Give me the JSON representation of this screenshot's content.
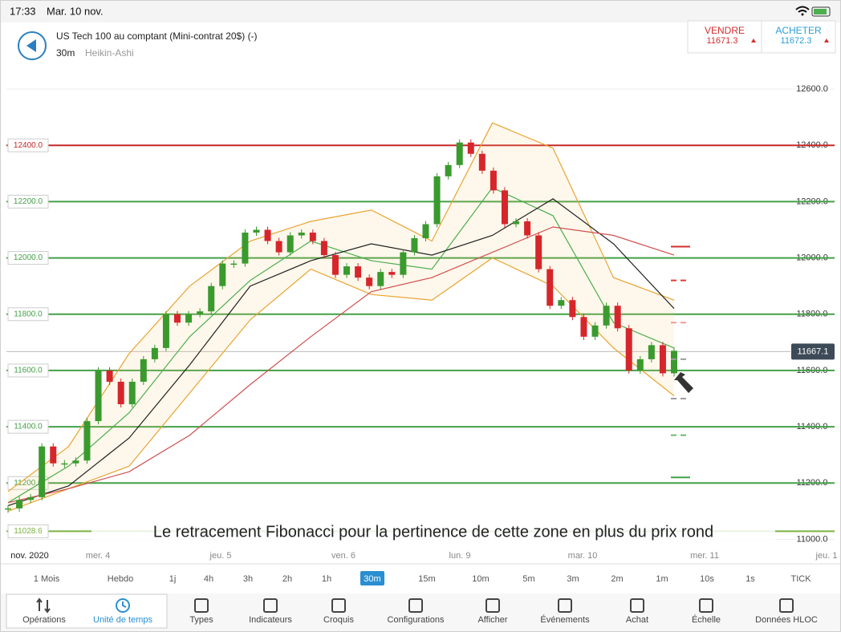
{
  "status_bar": {
    "time": "17:33",
    "date": "Mar. 10 nov."
  },
  "header": {
    "instrument": "US Tech 100 au comptant (Mini-contrat 20$) (-)",
    "interval": "30m",
    "chart_style": "Heikin-Ashi"
  },
  "quote": {
    "sell_label": "VENDRE",
    "sell_price": "11671.3",
    "buy_label": "ACHETER",
    "buy_price": "11672.3"
  },
  "chart_data": {
    "type": "candlestick",
    "up_color": "#3a9a2e",
    "down_color": "#d6262b",
    "values": [
      11110,
      11140,
      11150,
      11330,
      11270,
      11270,
      11280,
      11420,
      11600,
      11560,
      11480,
      11560,
      11640,
      11680,
      11800,
      11770,
      11800,
      11810,
      11900,
      11980,
      11980,
      12090,
      12100,
      12060,
      12020,
      12080,
      12090,
      12060,
      12010,
      11940,
      11970,
      11930,
      11900,
      11950,
      11940,
      12020,
      12070,
      12120,
      12290,
      12330,
      12410,
      12370,
      12310,
      12240,
      12120,
      12130,
      12080,
      11960,
      11830,
      11850,
      11790,
      11720,
      11760,
      11830,
      11750,
      11600,
      11640,
      11690,
      11590,
      11670
    ],
    "series": [
      {
        "color": "#e8a532",
        "values": [
          11170,
          11330,
          11660,
          11900,
          12060,
          12130,
          12170,
          12060,
          12480,
          12390,
          11930,
          11850
        ]
      },
      {
        "color": "#e8a532",
        "values": [
          11100,
          11180,
          11260,
          11520,
          11780,
          11960,
          11870,
          11850,
          12000,
          11900,
          11680,
          11510
        ]
      },
      {
        "color": "#4caf50",
        "values": [
          11130,
          11260,
          11450,
          11720,
          11920,
          12060,
          11990,
          11960,
          12250,
          12150,
          11770,
          11680
        ]
      },
      {
        "color": "#222222",
        "values": [
          11120,
          11190,
          11360,
          11620,
          11900,
          11990,
          12050,
          12010,
          12080,
          12210,
          12050,
          11820
        ]
      },
      {
        "color": "#d05050",
        "values": [
          11130,
          11180,
          11240,
          11370,
          11550,
          11720,
          11880,
          11930,
          12020,
          12110,
          12080,
          12010
        ]
      }
    ],
    "ylim": [
      10950,
      12660
    ],
    "yticks": [
      {
        "value": 11000,
        "label": "11000.0"
      },
      {
        "value": 11200,
        "label": "11200.0"
      },
      {
        "value": 11400,
        "label": "11400.0"
      },
      {
        "value": 11600,
        "label": "11600.0"
      },
      {
        "value": 11800,
        "label": "11800.0"
      },
      {
        "value": 12000,
        "label": "12000.0"
      },
      {
        "value": 12200,
        "label": "12200.0"
      },
      {
        "value": 12400,
        "label": "12400.0"
      },
      {
        "value": 12600,
        "label": "12600.0"
      }
    ],
    "levels": [
      {
        "value": 12400,
        "label": "12400.0",
        "color": "#c62828"
      },
      {
        "value": 12200,
        "label": "12200.0",
        "color": "#43a047"
      },
      {
        "value": 12000,
        "label": "12000.0",
        "color": "#43a047"
      },
      {
        "value": 11800,
        "label": "11800.0",
        "color": "#43a047"
      },
      {
        "value": 11600,
        "label": "11600.0",
        "color": "#43a047"
      },
      {
        "value": 11400,
        "label": "11400.0",
        "color": "#43a047"
      },
      {
        "value": 11200,
        "label": "11200.0",
        "color": "#43a047"
      },
      {
        "value": 11028.6,
        "label": "11028.6",
        "color": "#7cb342"
      }
    ],
    "pivots": [
      {
        "value": 12040,
        "color": "#d32f2f"
      },
      {
        "value": 11920,
        "color": "#e53935"
      },
      {
        "value": 11770,
        "color": "#ef9a9a"
      },
      {
        "value": 11640,
        "color": "#9e9e9e"
      },
      {
        "value": 11500,
        "color": "#9e9e9e"
      },
      {
        "value": 11370,
        "color": "#66bb6a"
      },
      {
        "value": 11220,
        "color": "#43a047"
      }
    ],
    "current_price": {
      "value": 11667.1,
      "label": "11667.1"
    },
    "x_labels": [
      "nov. 2020",
      "mer. 4",
      "jeu. 5",
      "ven. 6",
      "lun. 9",
      "mar. 10",
      "mer. 11",
      "jeu. 1"
    ],
    "annotation": "Le retracement Fibonacci pour la pertinence de cette zone en plus du prix rond"
  },
  "timeframes": {
    "items": [
      "1 Mois",
      "Hebdo",
      "1j",
      "4h",
      "3h",
      "2h",
      "1h",
      "30m",
      "15m",
      "10m",
      "5m",
      "3m",
      "2m",
      "1m",
      "10s",
      "1s",
      "TICK"
    ],
    "selected": "30m"
  },
  "toolbar": [
    "Opérations",
    "Unité de temps",
    "Types",
    "Indicateurs",
    "Croquis",
    "Configurations",
    "Afficher",
    "Événements",
    "Achat",
    "Échelle",
    "Données HLOC"
  ]
}
